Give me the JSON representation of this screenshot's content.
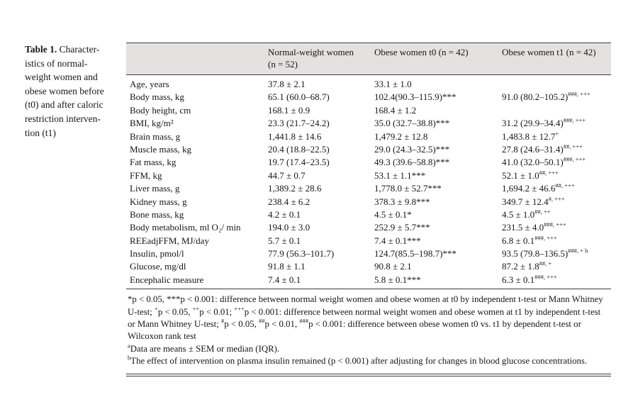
{
  "caption": {
    "bold": "Table 1.",
    "lines": [
      "Character-",
      "istics of normal-",
      "weight women and",
      "obese women before",
      "(t0) and after caloric",
      "restriction interven-",
      "tion (t1)"
    ]
  },
  "table": {
    "header": {
      "row_label": "",
      "normal_line1": "Normal-weight women",
      "normal_line2": "(n = 52)",
      "t0": "Obese women t0 (n = 42)",
      "t1": "Obese women t1 (n = 42)"
    },
    "rows": [
      {
        "label": "Age, years",
        "nw": "37.8 ± 2.1",
        "t0": "33.1 ± 1.0",
        "t1": "",
        "t1s": ""
      },
      {
        "label": "Body mass, kg",
        "nw": "65.1 (60.0–68.7)",
        "t0": "102.4(90.3–115.9)***",
        "t1": "91.0 (80.2–105.2)",
        "t1s": "###, +++"
      },
      {
        "label": "Body height, cm",
        "nw": "168.1 ± 0.9",
        "t0": "168.4 ± 1.2",
        "t1": "",
        "t1s": ""
      },
      {
        "label": "BMI, kg/m²",
        "nw": "23.3 (21.7–24.2)",
        "t0": "35.0 (32.7–38.8)***",
        "t1": "31.2 (29.9–34.4)",
        "t1s": "###, +++"
      },
      {
        "label": "Brain mass, g",
        "nw": "1,441.8 ± 14.6",
        "t0": "1,479.2 ± 12.8",
        "t1": "1,483.8 ± 12.7",
        "t1s": "+"
      },
      {
        "label": "Muscle mass, kg",
        "nw": "20.4 (18.8–22.5)",
        "t0": "29.0 (24.3–32.5)***",
        "t1": "27.8 (24.6–31.4)",
        "t1s": "##, +++"
      },
      {
        "label": "Fat mass, kg",
        "nw": "19.7 (17.4–23.5)",
        "t0": "49.3 (39.6–58.8)***",
        "t1": "41.0 (32.0–50.1)",
        "t1s": "###, +++"
      },
      {
        "label": "FFM, kg",
        "nw": "44.7 ± 0.7",
        "t0": "53.1 ± 1.1***",
        "t1": "52.1 ± 1.0",
        "t1s": "##, +++"
      },
      {
        "label": "Liver mass, g",
        "nw": "1,389.2 ± 28.6",
        "t0": "1,778.0 ± 52.7***",
        "t1": "1,694.2 ± 46.6",
        "t1s": "##, +++"
      },
      {
        "label": "Kidney mass, g",
        "nw": "238.4 ± 6.2",
        "t0": "378.3 ± 9.8***",
        "t1": "349.7 ± 12.4",
        "t1s": "#, +++"
      },
      {
        "label": "Bone mass, kg",
        "nw": "4.2 ± 0.1",
        "t0": "4.5 ± 0.1*",
        "t1": "4.5 ± 1.0",
        "t1s": "##, ++"
      },
      {
        "label": "Body metabolism, ml O₂/ min",
        "nw": "194.0 ± 3.0",
        "t0": "252.9 ± 5.7***",
        "t1": "231.5 ± 4.0",
        "t1s": "###, +++"
      },
      {
        "label": "REEadjFFM, MJ/day",
        "nw": "5.7 ± 0.1",
        "t0": "7.4 ± 0.1***",
        "t1": "6.8 ± 0.1",
        "t1s": "###, +++"
      },
      {
        "label": "Insulin, pmol/l",
        "nw": "77.9 (56.3–101.7)",
        "t0": "124.7(85.5–198.7)***",
        "t1": "93.5 (79.8–136.5)",
        "t1s": "###, + b"
      },
      {
        "label": "Glucose, mg/dl",
        "nw": "91.8 ± 1.1",
        "t0": "90.8 ± 2.1",
        "t1": "87.2 ± 1.8",
        "t1s": "##, +"
      },
      {
        "label": "Encephalic measure",
        "nw": "7.4 ± 0.1",
        "t0": "5.8 ± 0.1***",
        "t1": "6.3 ± 0.1",
        "t1s": "###, +++"
      }
    ]
  },
  "footnotes": {
    "paragraphs": [
      [
        {
          "t": "*p < 0.05, ***p < 0.001: difference between normal weight women and obese women at t0 by independent t-test or Mann Whitney U-test; ",
          "sup": false
        },
        {
          "t": "+",
          "sup": true
        },
        {
          "t": "p < 0.05, ",
          "sup": false
        },
        {
          "t": "++",
          "sup": true
        },
        {
          "t": "p < 0.01; ",
          "sup": false
        },
        {
          "t": "+++",
          "sup": true
        },
        {
          "t": "p < 0.001: difference between normal weight women and obese women at t1 by independent t-test or Mann Whitney U-test; ",
          "sup": false
        },
        {
          "t": "#",
          "sup": true
        },
        {
          "t": "p < 0.05, ",
          "sup": false
        },
        {
          "t": "##",
          "sup": true
        },
        {
          "t": "p < 0.01, ",
          "sup": false
        },
        {
          "t": "###",
          "sup": true
        },
        {
          "t": "p < 0.001: difference between obese women t0 vs. t1 by dependent t-test or Wilcoxon rank test",
          "sup": false
        }
      ],
      [
        {
          "t": "a",
          "sup": true
        },
        {
          "t": "Data are means ± SEM or median (IQR).",
          "sup": false
        }
      ],
      [
        {
          "t": "b",
          "sup": true
        },
        {
          "t": "The effect of intervention on plasma insulin remained (p < 0.001) after adjusting for changes in blood glucose concentrations.",
          "sup": false
        }
      ]
    ]
  }
}
